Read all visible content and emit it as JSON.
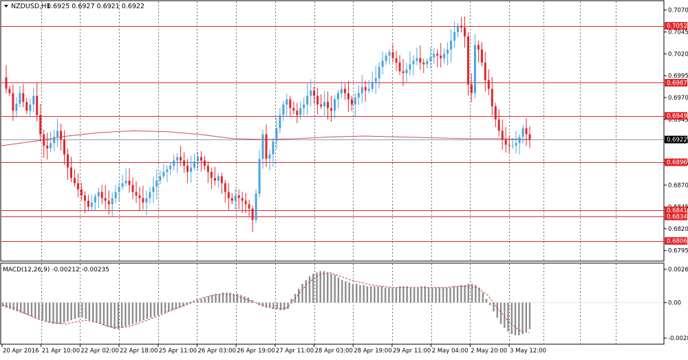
{
  "header": {
    "symbol_label": "NZDUSD,H1",
    "quote_values": "0.6925 0.6927 0.6921 0.6922"
  },
  "colors": {
    "bull": "#4aa3df",
    "bear": "#e0262b",
    "level_line": "#e0262b",
    "ma_line": "#d84a4a",
    "macd_signal": "#d23c3c",
    "macd_hist": "#8c8c8c",
    "grid": "#444444",
    "frame": "#000000",
    "current_price_line": "#8a9bb0"
  },
  "price_axis": {
    "range": [
      0.6783,
      0.708
    ],
    "tick_labels": [
      "0.7070",
      "0.7045",
      "0.7020",
      "0.6995",
      "0.6970",
      "0.6945",
      "0.6920",
      "0.6895",
      "0.6870",
      "0.6845",
      "0.6820",
      "0.6795"
    ]
  },
  "levels": [
    {
      "label": "0.7052",
      "value": 0.7052
    },
    {
      "label": "0.6987",
      "value": 0.6987
    },
    {
      "label": "0.6949",
      "value": 0.6949
    },
    {
      "label": "0.6896",
      "value": 0.6896
    },
    {
      "label": "0.6841",
      "value": 0.6841
    },
    {
      "label": "0.6834",
      "value": 0.6834
    },
    {
      "label": "0.6806",
      "value": 0.6806
    }
  ],
  "current_price": {
    "label": "0.6922",
    "value": 0.6922
  },
  "indicator": {
    "label": "MACD(12,26,9) -0.00212 -0.00235",
    "axis_labels": [
      "0.00265",
      "0.00",
      "-0.00281"
    ],
    "range": [
      -0.00281,
      0.00265
    ]
  },
  "time_axis": {
    "labels": [
      "20 Apr 2016",
      "21 Apr 10:00",
      "22 Apr 02:00",
      "22 Apr 18:00",
      "25 Apr 11:00",
      "26 Apr 03:00",
      "26 Apr 19:00",
      "27 Apr 11:00",
      "28 Apr 03:00",
      "28 Apr 19:00",
      "29 Apr 11:00",
      "2 May 04:00",
      "2 May 20:00",
      "3 May 12:00"
    ]
  },
  "chart_data": {
    "type": "candlestick",
    "symbol": "NZDUSD",
    "timeframe": "H1",
    "x_labels": [
      "20 Apr 2016",
      "21 Apr 10:00",
      "22 Apr 02:00",
      "22 Apr 18:00",
      "25 Apr 11:00",
      "26 Apr 03:00",
      "26 Apr 19:00",
      "27 Apr 11:00",
      "28 Apr 03:00",
      "28 Apr 19:00",
      "29 Apr 11:00",
      "2 May 04:00",
      "2 May 20:00",
      "3 May 12:00"
    ],
    "y_range": [
      0.6783,
      0.708
    ],
    "close_path": [
      0.6993,
      0.698,
      0.6975,
      0.6955,
      0.6963,
      0.6975,
      0.6965,
      0.6955,
      0.6962,
      0.6972,
      0.695,
      0.6928,
      0.6915,
      0.6912,
      0.6918,
      0.6925,
      0.6932,
      0.6922,
      0.6905,
      0.689,
      0.6878,
      0.6872,
      0.6865,
      0.6858,
      0.6852,
      0.6845,
      0.685,
      0.6857,
      0.6862,
      0.6855,
      0.6852,
      0.6848,
      0.6855,
      0.6862,
      0.6868,
      0.6872,
      0.6875,
      0.687,
      0.6862,
      0.6858,
      0.6855,
      0.685,
      0.6855,
      0.6862,
      0.6868,
      0.6875,
      0.688,
      0.6885,
      0.6888,
      0.6892,
      0.6898,
      0.6902,
      0.6898,
      0.6892,
      0.6885,
      0.689,
      0.6897,
      0.6902,
      0.6898,
      0.6892,
      0.6885,
      0.6878,
      0.6875,
      0.688,
      0.6872,
      0.6862,
      0.6855,
      0.6852,
      0.6858,
      0.6855,
      0.6852,
      0.6848,
      0.6843,
      0.683,
      0.686,
      0.69,
      0.6928,
      0.69,
      0.6905,
      0.692,
      0.6935,
      0.695,
      0.6962,
      0.6968,
      0.6958,
      0.6955,
      0.695,
      0.6958,
      0.6962,
      0.6972,
      0.6978,
      0.6972,
      0.6962,
      0.696,
      0.6965,
      0.6958,
      0.6955,
      0.6968,
      0.6975,
      0.698,
      0.6975,
      0.6968,
      0.6962,
      0.697,
      0.6975,
      0.6982,
      0.6978,
      0.698,
      0.6988,
      0.6992,
      0.7005,
      0.7012,
      0.7018,
      0.7022,
      0.7015,
      0.701,
      0.7,
      0.6998,
      0.7002,
      0.7008,
      0.7012,
      0.7015,
      0.701,
      0.7008,
      0.7012,
      0.7016,
      0.702,
      0.7018,
      0.7015,
      0.702,
      0.7025,
      0.7035,
      0.7045,
      0.7052,
      0.705,
      0.704,
      0.6985,
      0.6975,
      0.703,
      0.7025,
      0.701,
      0.699,
      0.698,
      0.696,
      0.6945,
      0.6932,
      0.6922,
      0.6916,
      0.6915,
      0.6915,
      0.6918,
      0.6925,
      0.6935,
      0.6928,
      0.6922
    ],
    "overlay_line_path": [
      0.6915,
      0.692,
      0.6926,
      0.693,
      0.6932,
      0.6931,
      0.6928,
      0.6923,
      0.6922,
      0.6923,
      0.6925,
      0.6926,
      0.6925,
      0.6924,
      0.6923,
      0.6923,
      0.6922
    ],
    "macd_hist": [
      -0.0003,
      -0.0004,
      -0.0005,
      -0.0006,
      -0.0007,
      -0.0008,
      -0.0009,
      -0.001,
      -0.0011,
      -0.0012,
      -0.0013,
      -0.0014,
      -0.0015,
      -0.0016,
      -0.0017,
      -0.0017,
      -0.0017,
      -0.0016,
      -0.0015,
      -0.0014,
      -0.0013,
      -0.0012,
      -0.0012,
      -0.0013,
      -0.0014,
      -0.0015,
      -0.0016,
      -0.0017,
      -0.0018,
      -0.0019,
      -0.002,
      -0.0021,
      -0.0021,
      -0.002,
      -0.0019,
      -0.0018,
      -0.0017,
      -0.0016,
      -0.0015,
      -0.0014,
      -0.0013,
      -0.0012,
      -0.0011,
      -0.001,
      -0.0009,
      -0.0008,
      -0.0007,
      -0.0006,
      -0.0005,
      -0.0004,
      -0.0003,
      -0.0002,
      -0.0001,
      0.0001,
      0.0002,
      0.0003,
      0.0004,
      0.0005,
      0.0006,
      0.0007,
      0.0007,
      0.0008,
      0.0008,
      0.0008,
      0.0007,
      0.0007,
      0.0006,
      0.0005,
      0.0004,
      0.0002,
      0.0,
      -0.0002,
      -0.0003,
      -0.0004,
      -0.0004,
      -0.0005,
      -0.0005,
      -0.0006,
      -0.0006,
      -0.0005,
      0.0003,
      0.0007,
      0.0011,
      0.0015,
      0.0018,
      0.0021,
      0.0023,
      0.0024,
      0.0025,
      0.0025,
      0.0024,
      0.0023,
      0.0022,
      0.002,
      0.0018,
      0.0017,
      0.0016,
      0.0015,
      0.0015,
      0.0014,
      0.0014,
      0.0013,
      0.0013,
      0.0013,
      0.0013,
      0.0013,
      0.0012,
      0.0012,
      0.0012,
      0.0012,
      0.0013,
      0.0013,
      0.0013,
      0.0012,
      0.0012,
      0.0012,
      0.0013,
      0.0013,
      0.0012,
      0.0012,
      0.0012,
      0.0012,
      0.0012,
      0.0012,
      0.0012,
      0.0013,
      0.0013,
      0.0014,
      0.0014,
      0.0015,
      0.0015,
      0.0014,
      0.0012,
      0.0008,
      0.0003,
      -0.0002,
      -0.0007,
      -0.0012,
      -0.0017,
      -0.002,
      -0.0023,
      -0.0025,
      -0.0026,
      -0.0026,
      -0.0025,
      -0.0023,
      -0.0021
    ],
    "macd_signal_path": [
      -0.0002,
      -0.0004,
      -0.0008,
      -0.0012,
      -0.0015,
      -0.0016,
      -0.0017,
      -0.0015,
      -0.0014,
      -0.0016,
      -0.0019,
      -0.002,
      -0.0019,
      -0.0016,
      -0.0013,
      -0.001,
      -0.0006,
      -0.0003,
      0.0001,
      0.0004,
      0.0006,
      0.0007,
      0.0006,
      0.0003,
      0.0,
      -0.0003,
      -0.0005,
      -0.0004,
      0.0006,
      0.0016,
      0.0022,
      0.0024,
      0.0021,
      0.0018,
      0.0016,
      0.0014,
      0.0013,
      0.0012,
      0.0012,
      0.0012,
      0.0012,
      0.0012,
      0.0012,
      0.0013,
      0.0013,
      0.0012,
      0.0006,
      -0.0005,
      -0.0015,
      -0.0022,
      -0.0024
    ]
  }
}
